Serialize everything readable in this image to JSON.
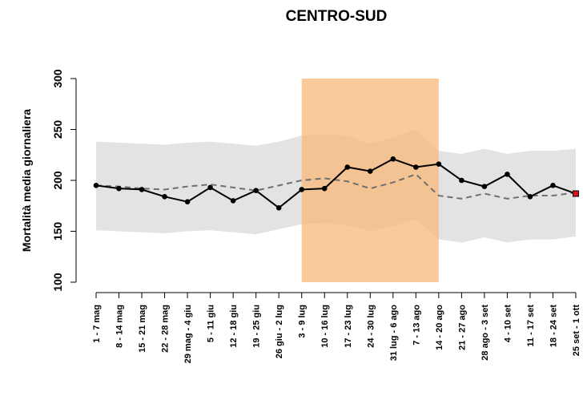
{
  "chart_data": {
    "type": "line",
    "title": "CENTRO-SUD",
    "y_label": "Mortalità media giornaliera",
    "categories": [
      "1 - 7 mag",
      "8 - 14 mag",
      "15 - 21 mag",
      "22 - 28 mag",
      "29 mag - 4 giu",
      "5 - 11 giu",
      "12 - 18 giu",
      "19 - 25 giu",
      "26 giu - 2 lug",
      "3 - 9 lug",
      "10 - 16 lug",
      "17 - 23 lug",
      "24 - 30 lug",
      "31 lug - 6 ago",
      "7 - 13 ago",
      "14 - 20 ago",
      "21 - 27 ago",
      "28 ago - 3 set",
      "4 - 10 set",
      "11 - 17 set",
      "18 - 24 set",
      "25 set - 1 ott"
    ],
    "observed": {
      "color": "#000000",
      "last_color": "#e0101a",
      "values": [
        195,
        192,
        191,
        184,
        179,
        193,
        180,
        190,
        173,
        191,
        192,
        213,
        209,
        221,
        213,
        216,
        200,
        194,
        206,
        184,
        195,
        187
      ]
    },
    "expected": {
      "color": "#707070",
      "values": [
        195,
        194,
        192,
        191,
        194,
        196,
        193,
        190,
        195,
        200,
        202,
        199,
        192,
        198,
        206,
        185,
        182,
        187,
        182,
        185,
        185,
        188
      ]
    },
    "band": {
      "color": "#e3e3e3",
      "low": [
        151,
        150,
        149,
        148,
        150,
        151,
        149,
        147,
        152,
        157,
        158,
        156,
        150,
        155,
        162,
        142,
        139,
        144,
        139,
        142,
        142,
        145
      ],
      "high": [
        238,
        237,
        236,
        235,
        237,
        238,
        236,
        234,
        238,
        244,
        245,
        244,
        236,
        242,
        250,
        229,
        226,
        231,
        226,
        229,
        229,
        231
      ]
    },
    "highlight": {
      "color": "#f9b878",
      "opacity": 0.75,
      "range": [
        9,
        15
      ]
    },
    "ylim": [
      100,
      300
    ],
    "yticks": [
      100,
      150,
      200,
      250,
      300
    ]
  }
}
